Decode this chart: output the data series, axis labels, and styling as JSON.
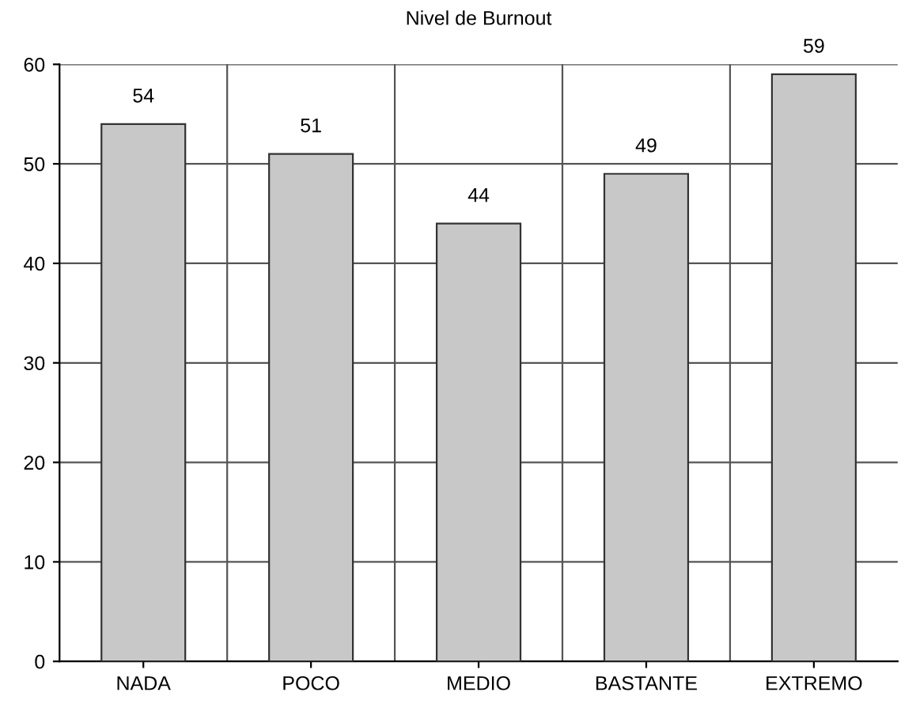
{
  "chart_data": {
    "type": "bar",
    "title": "Nivel de Burnout",
    "categories": [
      "NADA",
      "POCO",
      "MEDIO",
      "BASTANTE",
      "EXTREMO"
    ],
    "values": [
      54,
      51,
      44,
      49,
      59
    ],
    "color": "#c8c8c8",
    "ylim": [
      0,
      60
    ],
    "yticks": [
      0,
      10,
      20,
      30,
      40,
      50,
      60
    ],
    "grid": true,
    "data_labels": true
  }
}
